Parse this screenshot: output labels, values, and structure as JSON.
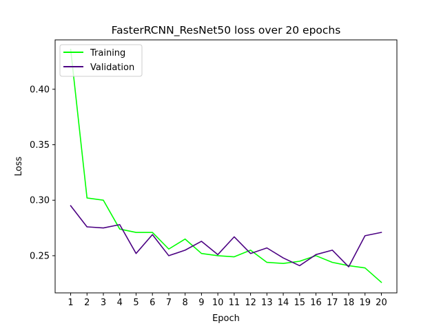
{
  "chart_data": {
    "type": "line",
    "title": "FasterRCNN_ResNet50 loss over 20 epochs",
    "xlabel": "Epoch",
    "ylabel": "Loss",
    "x": [
      1,
      2,
      3,
      4,
      5,
      6,
      7,
      8,
      9,
      10,
      11,
      12,
      13,
      14,
      15,
      16,
      17,
      18,
      19,
      20
    ],
    "xlim": [
      0.05,
      20.95
    ],
    "ylim": [
      0.2165,
      0.4445
    ],
    "yticks": [
      0.25,
      0.3,
      0.35,
      0.4
    ],
    "ytick_labels": [
      "0.25",
      "0.30",
      "0.35",
      "0.40"
    ],
    "grid": false,
    "legend_position": "top-left",
    "series": [
      {
        "name": "Training",
        "color": "#00ff00",
        "values": [
          0.436,
          0.302,
          0.3,
          0.274,
          0.271,
          0.271,
          0.256,
          0.265,
          0.252,
          0.25,
          0.249,
          0.255,
          0.244,
          0.243,
          0.245,
          0.25,
          0.244,
          0.241,
          0.239,
          0.226
        ]
      },
      {
        "name": "Validation",
        "color": "#4b0082",
        "values": [
          0.295,
          0.276,
          0.275,
          0.278,
          0.252,
          0.269,
          0.25,
          0.255,
          0.263,
          0.251,
          0.267,
          0.252,
          0.257,
          0.248,
          0.241,
          0.251,
          0.255,
          0.24,
          0.268,
          0.271
        ]
      }
    ]
  }
}
